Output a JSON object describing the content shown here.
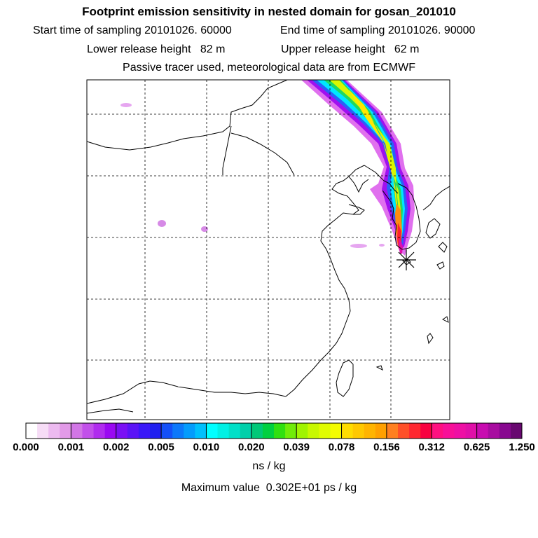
{
  "titles": {
    "main": "Footprint emission sensitivity in nested domain for gosan_201010",
    "start_sampling": "Start time of sampling 20101026. 60000",
    "end_sampling": "End time of sampling 20101026. 90000",
    "lower_release": "Lower release height   82 m",
    "upper_release": "Upper release height   62 m",
    "tracer_info": "Passive tracer used, meteorological data are from ECMWF"
  },
  "legend": {
    "ticks": [
      "0.000",
      "0.001",
      "0.002",
      "0.005",
      "0.010",
      "0.020",
      "0.039",
      "0.078",
      "0.156",
      "0.312",
      "0.625",
      "1.250"
    ],
    "colors": [
      [
        "#ffffff",
        "#f6dcf6",
        "#ecbaf0",
        "#e29ae8"
      ],
      [
        "#d276e6",
        "#c250ea",
        "#b02cee",
        "#9a08f2"
      ],
      [
        "#7a10f4",
        "#5a14f6",
        "#3a18f8",
        "#2020f0"
      ],
      [
        "#1450f8",
        "#0c78fa",
        "#049cfc",
        "#00c0fc"
      ],
      [
        "#00ffff",
        "#00f0e4",
        "#00e0c8",
        "#00d0aa"
      ],
      [
        "#00c878",
        "#00d040",
        "#30e010",
        "#70ec08"
      ],
      [
        "#a0f400",
        "#c8f800",
        "#e0fc00",
        "#f4fc00"
      ],
      [
        "#ffdc00",
        "#ffc800",
        "#ffb400",
        "#ffa000"
      ],
      [
        "#ff8020",
        "#ff5028",
        "#ff2830",
        "#f80040"
      ],
      [
        "#ff1080",
        "#f81098",
        "#ee10a4",
        "#e010a8"
      ],
      [
        "#c80cb0",
        "#a80ca0",
        "#880890",
        "#680870"
      ]
    ],
    "unit": "ns / kg"
  },
  "max_value": "Maximum value  0.302E+01 ps / kg",
  "map": {
    "features": [
      "coastlines",
      "national-borders",
      "lat-lon-grid",
      "emission-footprint-plume",
      "receptor-marker"
    ],
    "receptor": "gosan"
  }
}
